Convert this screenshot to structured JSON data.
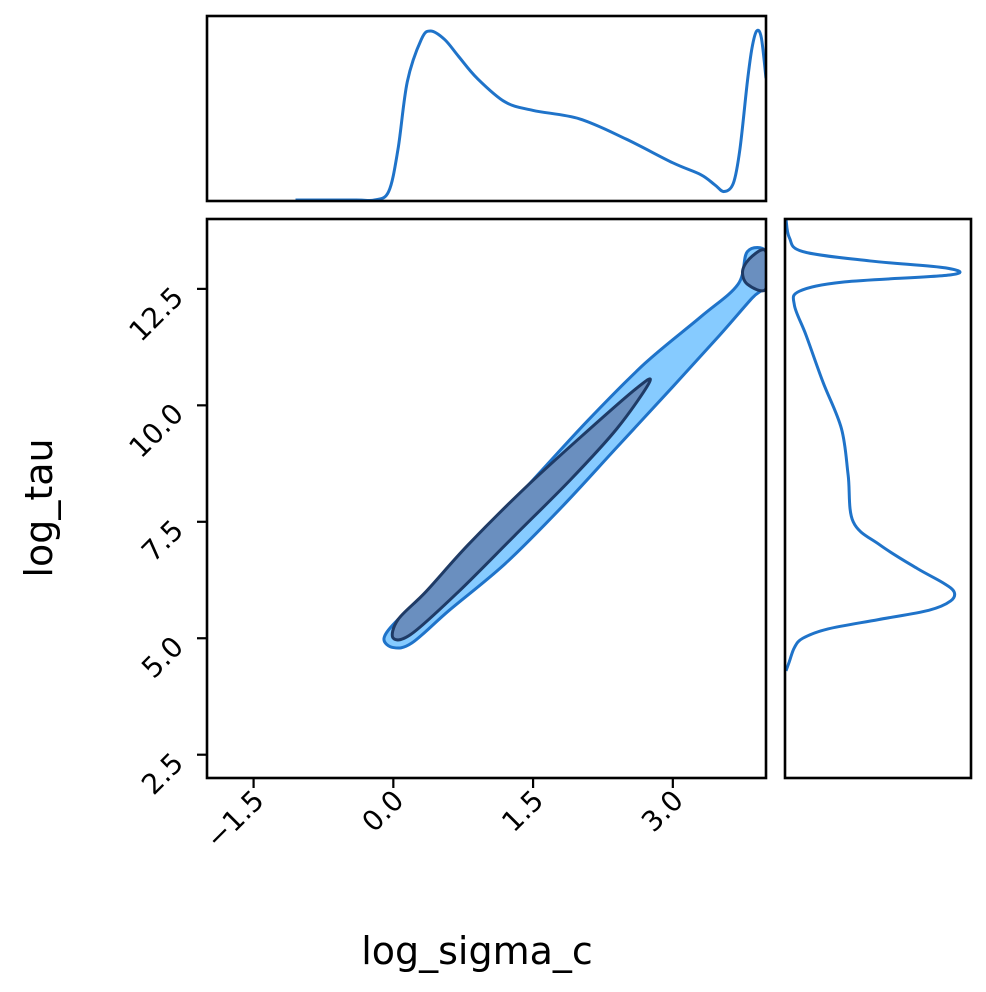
{
  "chart_data": {
    "type": "pair-density",
    "title": "",
    "xlabel": "log_sigma_c",
    "ylabel": "log_tau",
    "xlim": [
      -2.0,
      4.0
    ],
    "ylim": [
      2.0,
      14.0
    ],
    "xticks": [
      -1.5,
      0.0,
      1.5,
      3.0
    ],
    "xtick_labels": [
      "−1.5",
      "0.0",
      "1.5",
      "3.0"
    ],
    "yticks": [
      2.5,
      5.0,
      7.5,
      10.0,
      12.5
    ],
    "ytick_labels": [
      "2.5",
      "5.0",
      "7.5",
      "10.0",
      "12.5"
    ],
    "grid": false,
    "colors": {
      "line": "#1f73c9",
      "outer_fill": "#86cbff",
      "outer_stroke": "#1f73c9",
      "inner_fill": "#6a8fbf",
      "inner_stroke": "#1f3b66"
    },
    "marginal_x": {
      "x": [
        -1.05,
        -0.4,
        -0.2,
        -0.05,
        0.05,
        0.15,
        0.3,
        0.4,
        0.55,
        0.7,
        0.9,
        1.2,
        1.5,
        2.0,
        2.5,
        3.0,
        3.3,
        3.45,
        3.55,
        3.65,
        3.72,
        3.8,
        3.85,
        3.9,
        3.95,
        4.0
      ],
      "density": [
        0.0,
        0.0,
        0.0,
        0.05,
        0.3,
        0.7,
        0.95,
        1.0,
        0.95,
        0.85,
        0.72,
        0.58,
        0.53,
        0.48,
        0.36,
        0.22,
        0.15,
        0.09,
        0.05,
        0.1,
        0.3,
        0.7,
        0.9,
        1.0,
        0.96,
        0.72
      ]
    },
    "marginal_y": {
      "y": [
        14.0,
        13.6,
        13.3,
        13.1,
        12.95,
        12.8,
        12.65,
        12.45,
        12.15,
        11.5,
        10.5,
        9.5,
        8.5,
        7.5,
        7.0,
        6.5,
        6.2,
        6.0,
        5.8,
        5.6,
        5.4,
        5.2,
        5.0,
        4.8,
        4.5,
        4.3
      ],
      "density": [
        0.0,
        0.02,
        0.1,
        0.5,
        0.95,
        0.98,
        0.35,
        0.08,
        0.05,
        0.12,
        0.22,
        0.33,
        0.37,
        0.4,
        0.56,
        0.78,
        0.93,
        1.0,
        0.98,
        0.85,
        0.55,
        0.25,
        0.1,
        0.05,
        0.02,
        0.0
      ]
    },
    "contour_outer": [
      [
        0.0,
        4.8
      ],
      [
        0.2,
        4.9
      ],
      [
        0.6,
        5.6
      ],
      [
        1.2,
        6.6
      ],
      [
        1.8,
        7.8
      ],
      [
        2.4,
        9.1
      ],
      [
        3.0,
        10.4
      ],
      [
        3.5,
        11.5
      ],
      [
        3.85,
        12.3
      ],
      [
        4.0,
        12.6
      ],
      [
        4.0,
        13.3
      ],
      [
        3.8,
        13.3
      ],
      [
        3.7,
        12.6
      ],
      [
        3.3,
        11.9
      ],
      [
        2.7,
        10.9
      ],
      [
        2.1,
        9.7
      ],
      [
        1.5,
        8.4
      ],
      [
        0.9,
        7.1
      ],
      [
        0.4,
        6.0
      ],
      [
        0.05,
        5.4
      ],
      [
        -0.1,
        5.0
      ]
    ],
    "contour_inner_main": [
      [
        0.0,
        5.0
      ],
      [
        0.2,
        5.1
      ],
      [
        0.7,
        6.0
      ],
      [
        1.3,
        7.2
      ],
      [
        1.9,
        8.4
      ],
      [
        2.4,
        9.5
      ],
      [
        2.75,
        10.5
      ],
      [
        2.6,
        10.35
      ],
      [
        2.0,
        9.3
      ],
      [
        1.4,
        8.2
      ],
      [
        0.8,
        7.0
      ],
      [
        0.35,
        6.0
      ],
      [
        0.05,
        5.4
      ]
    ],
    "contour_inner_upper": [
      [
        3.8,
        12.6
      ],
      [
        4.0,
        12.5
      ],
      [
        4.0,
        13.3
      ],
      [
        3.85,
        13.2
      ],
      [
        3.75,
        12.9
      ]
    ]
  }
}
